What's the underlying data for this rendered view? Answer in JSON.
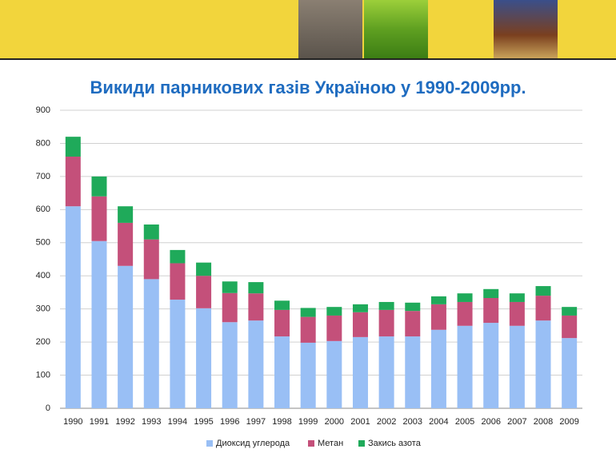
{
  "chart_data": {
    "type": "stacked_bar",
    "title": "Викиди парникових газів Україною у 1990-2009рр.",
    "categories": [
      "1990",
      "1991",
      "1992",
      "1993",
      "1994",
      "1995",
      "1996",
      "1997",
      "1998",
      "1999",
      "2000",
      "2001",
      "2002",
      "2003",
      "2004",
      "2005",
      "2006",
      "2007",
      "2008",
      "2009"
    ],
    "series": [
      {
        "name": "Диоксид углерода",
        "color": "#99bff5",
        "values": [
          610,
          505,
          430,
          390,
          328,
          302,
          260,
          265,
          217,
          198,
          203,
          215,
          217,
          217,
          237,
          249,
          258,
          249,
          265,
          212
        ]
      },
      {
        "name": "Метан",
        "color": "#c4507a",
        "values": [
          150,
          135,
          130,
          120,
          110,
          98,
          88,
          82,
          80,
          78,
          77,
          75,
          80,
          77,
          77,
          72,
          75,
          72,
          75,
          68
        ]
      },
      {
        "name": "Закись азота",
        "color": "#1faa5a",
        "values": [
          60,
          60,
          50,
          45,
          40,
          40,
          35,
          34,
          28,
          27,
          26,
          24,
          24,
          25,
          24,
          26,
          27,
          26,
          29,
          26
        ]
      }
    ],
    "ylim": [
      0,
      900
    ],
    "yticks": [
      0,
      100,
      200,
      300,
      400,
      500,
      600,
      700,
      800,
      900
    ],
    "grid": true,
    "legend": "bottom"
  }
}
